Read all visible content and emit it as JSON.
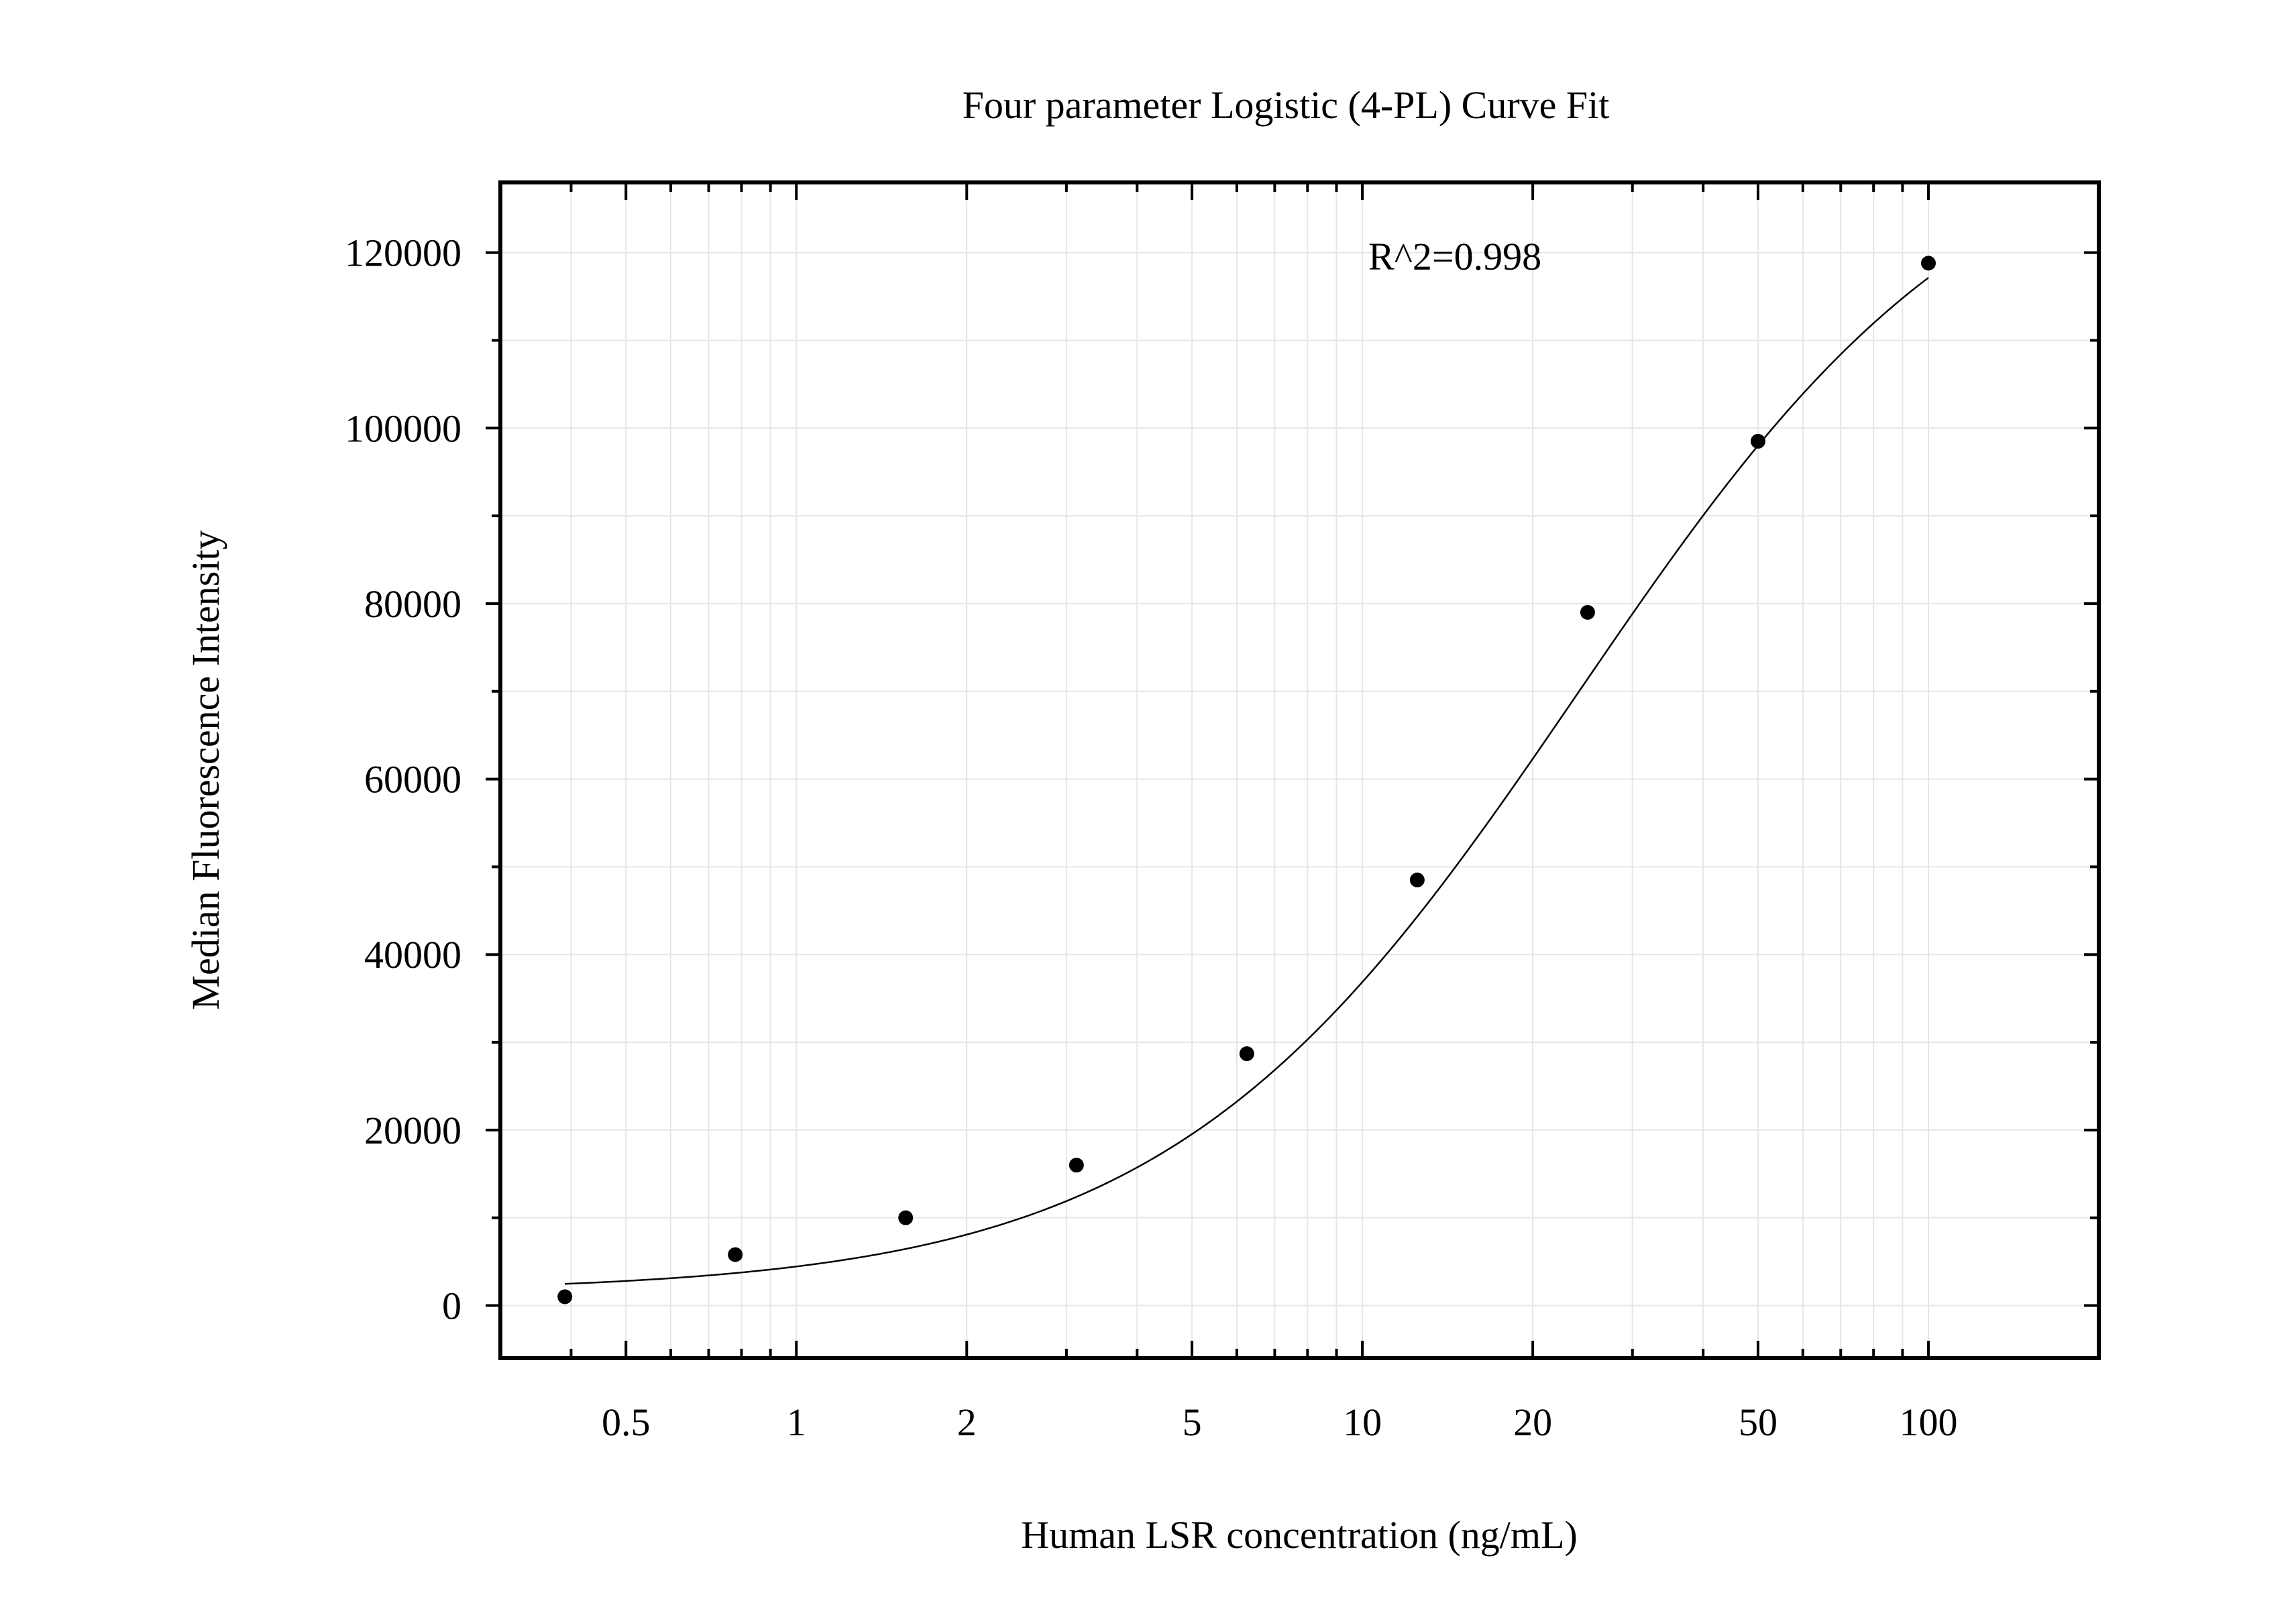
{
  "chart_data": {
    "type": "scatter",
    "title": "Four parameter Logistic (4-PL) Curve Fit",
    "xlabel": "Human LSR concentration (ng/mL)",
    "ylabel": "Median Fluorescence Intensity",
    "annotation": "R^2=0.998",
    "x_scale": "log",
    "xlim": [
      0.3,
      200
    ],
    "ylim": [
      -6000,
      128000
    ],
    "x_ticks": [
      0.5,
      1,
      2,
      5,
      10,
      20,
      50,
      100
    ],
    "x_tick_labels": [
      "0.5",
      "1",
      "2",
      "5",
      "10",
      "20",
      "50",
      "100"
    ],
    "y_ticks": [
      0,
      20000,
      40000,
      60000,
      80000,
      100000,
      120000
    ],
    "y_tick_labels": [
      "0",
      "20000",
      "40000",
      "60000",
      "80000",
      "100000",
      "120000"
    ],
    "grid": true,
    "legend": "none",
    "series": [
      {
        "type": "scatter",
        "x": [
          0.39,
          0.78,
          1.56,
          3.125,
          6.25,
          12.5,
          25,
          50,
          100
        ],
        "y": [
          1000,
          5800,
          10000,
          16000,
          28700,
          48500,
          79000,
          98500,
          118800
        ]
      }
    ],
    "fit_curve": {
      "model": "4PL",
      "bottom": 1500,
      "top": 138000,
      "ec50": 24,
      "hill": 1.2,
      "x_range": [
        0.39,
        100
      ]
    },
    "colors": {
      "points": "#000000",
      "curve": "#000000",
      "grid": "#e6e6e6",
      "frame": "#000000"
    }
  }
}
